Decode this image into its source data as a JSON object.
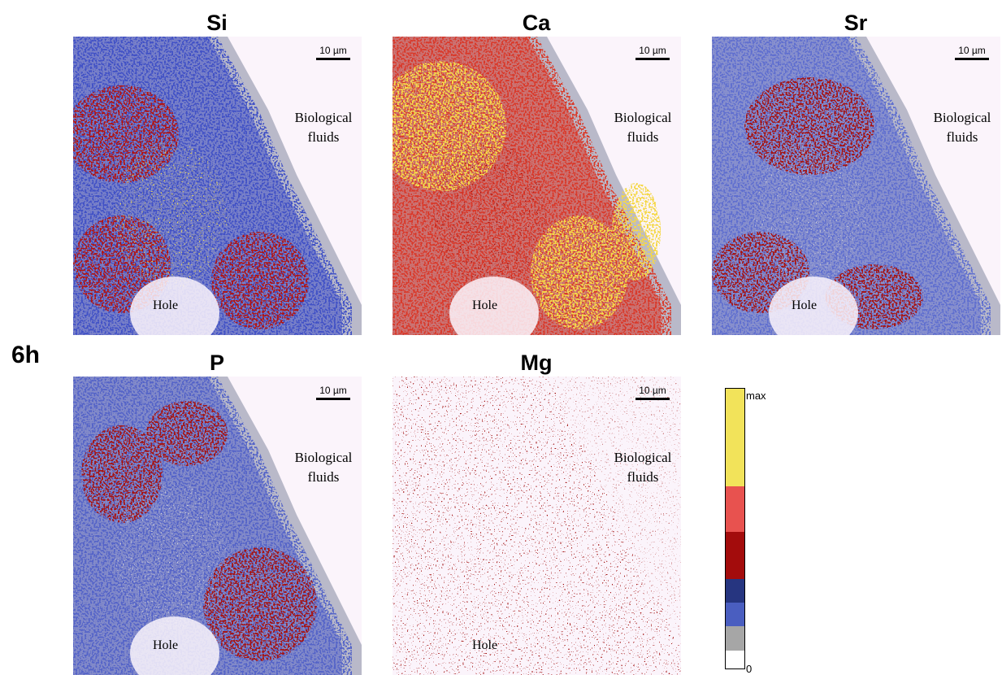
{
  "figure_label": "6h",
  "panels": [
    {
      "element": "Si",
      "scale_bar": "10 µm",
      "region_labels": [
        "Biological fluids",
        "Hole"
      ]
    },
    {
      "element": "Ca",
      "scale_bar": "10 µm",
      "region_labels": [
        "Biological fluids",
        "Hole"
      ]
    },
    {
      "element": "Sr",
      "scale_bar": "10 µm",
      "region_labels": [
        "Biological fluids",
        "Hole"
      ]
    },
    {
      "element": "P",
      "scale_bar": "10 µm",
      "region_labels": [
        "Biological fluids",
        "Hole"
      ]
    },
    {
      "element": "Mg",
      "scale_bar": "10 µm",
      "region_labels": [
        "Biological fluids",
        "Hole"
      ]
    }
  ],
  "colorbar": {
    "max_label": "max",
    "min_label": "0"
  }
}
